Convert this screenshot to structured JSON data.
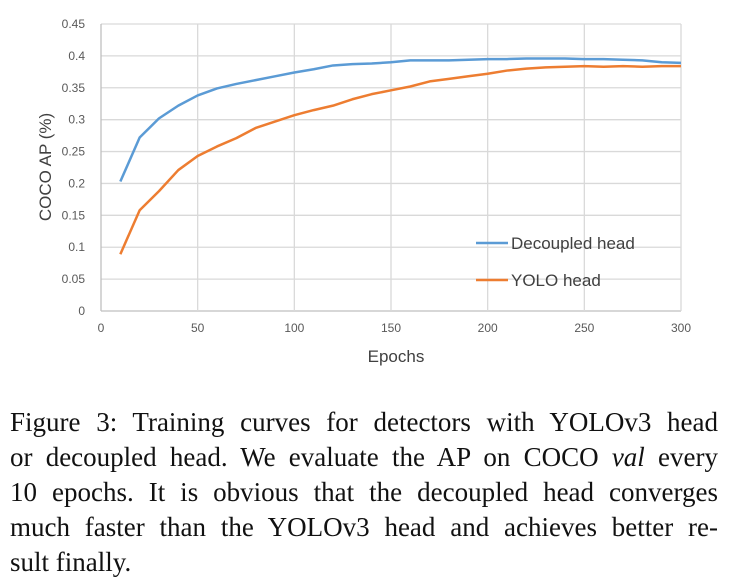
{
  "chart_data": {
    "type": "line",
    "title": "",
    "xlabel": "Epochs",
    "ylabel": "COCO AP (%)",
    "xlim": [
      0,
      300
    ],
    "ylim": [
      0,
      0.45
    ],
    "xticks": [
      "0",
      "50",
      "100",
      "150",
      "200",
      "250",
      "300"
    ],
    "yticks": [
      "0",
      "0.05",
      "0.1",
      "0.15",
      "0.2",
      "0.25",
      "0.3",
      "0.35",
      "0.4",
      "0.45"
    ],
    "grid": true,
    "legend_position": "bottom-right",
    "x": [
      10,
      20,
      30,
      40,
      50,
      60,
      70,
      80,
      90,
      100,
      110,
      120,
      130,
      140,
      150,
      160,
      170,
      180,
      190,
      200,
      210,
      220,
      230,
      240,
      250,
      260,
      270,
      280,
      290,
      300
    ],
    "series": [
      {
        "name": "Decoupled head",
        "color": "#5B9BD5",
        "values": [
          0.203,
          0.272,
          0.302,
          0.322,
          0.338,
          0.349,
          0.356,
          0.362,
          0.368,
          0.374,
          0.379,
          0.385,
          0.387,
          0.388,
          0.39,
          0.393,
          0.393,
          0.393,
          0.394,
          0.395,
          0.395,
          0.396,
          0.396,
          0.396,
          0.395,
          0.395,
          0.394,
          0.393,
          0.39,
          0.389
        ]
      },
      {
        "name": "YOLO head",
        "color": "#ED7D31",
        "values": [
          0.089,
          0.158,
          0.188,
          0.221,
          0.243,
          0.258,
          0.271,
          0.287,
          0.297,
          0.307,
          0.315,
          0.322,
          0.332,
          0.34,
          0.346,
          0.352,
          0.36,
          0.364,
          0.368,
          0.372,
          0.377,
          0.38,
          0.382,
          0.383,
          0.384,
          0.383,
          0.384,
          0.383,
          0.384,
          0.384
        ]
      }
    ]
  },
  "caption": {
    "lines": [
      [
        "Figure 3: Training curves for detectors with YOLOv3 head"
      ],
      [
        "or decoupled head. We evaluate the AP on COCO ",
        "val",
        " every"
      ],
      [
        "10 epochs. It is obvious that the decoupled head converges"
      ],
      [
        "much faster than the YOLOv3 head and achieves better re-"
      ],
      [
        "sult finally."
      ]
    ]
  }
}
